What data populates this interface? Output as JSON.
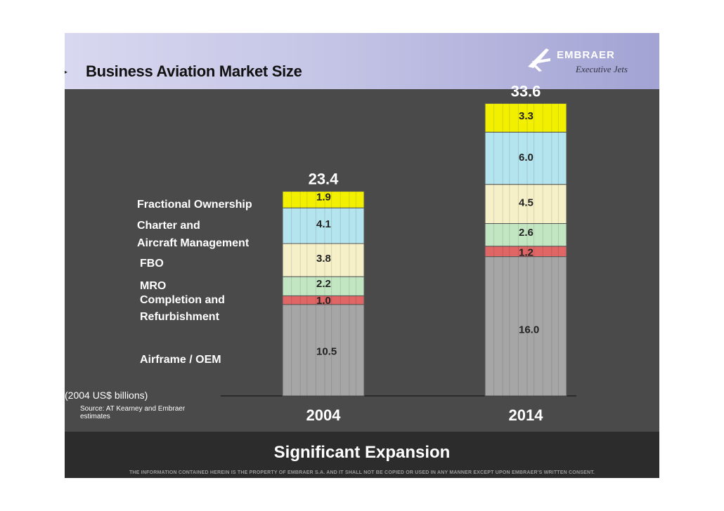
{
  "header": {
    "title": "Business Aviation Market Size",
    "logo_text": "EMBRAER",
    "logo_subtext": "Executive Jets"
  },
  "chart_data": {
    "type": "bar",
    "stacked": true,
    "categories": [
      "2004",
      "2014"
    ],
    "totals": [
      "23.4",
      "33.6"
    ],
    "series": [
      {
        "name": "Airframe / OEM",
        "values": [
          10.5,
          16.0
        ],
        "labels": [
          "10.5",
          "16.0"
        ],
        "color": "#a6a6a6"
      },
      {
        "name": "Completion and Refurbishment",
        "values": [
          1.0,
          1.2
        ],
        "labels": [
          "1.0",
          "1.2"
        ],
        "color": "#e06666"
      },
      {
        "name": "MRO",
        "values": [
          2.2,
          2.6
        ],
        "labels": [
          "2.2",
          "2.6"
        ],
        "color": "#c2e6c2"
      },
      {
        "name": "FBO",
        "values": [
          3.8,
          4.5
        ],
        "labels": [
          "3.8",
          "4.5"
        ],
        "color": "#f5f0c8"
      },
      {
        "name": "Charter and Aircraft Management",
        "values": [
          4.1,
          6.0
        ],
        "labels": [
          "4.1",
          "6.0"
        ],
        "color": "#b4e4ee"
      },
      {
        "name": "Fractional Ownership",
        "values": [
          1.9,
          3.3
        ],
        "labels": [
          "1.9",
          "3.3"
        ],
        "color": "#f2f000"
      }
    ],
    "units": "(2004 US$ billions)",
    "source": "Source: AT Kearney and Embraer estimates"
  },
  "legend": {
    "fractional": "Fractional Ownership",
    "charter_1": "Charter and",
    "charter_2": "Aircraft Management",
    "fbo": "FBO",
    "mro": "MRO",
    "completion_1": "Completion and",
    "completion_2": "Refurbishment",
    "airframe": "Airframe / OEM"
  },
  "footer": {
    "tagline": "Significant Expansion",
    "disclaimer": "THE INFORMATION CONTAINED HEREIN IS THE PROPERTY OF EMBRAER S.A. AND IT SHALL NOT BE COPIED OR USED IN ANY MANNER EXCEPT UPON EMBRAER'S WRITTEN CONSENT."
  },
  "colors": {
    "slide_bg": "#4a4a4a",
    "footer_bg": "#2c2c2c",
    "text": "#ffffff"
  }
}
